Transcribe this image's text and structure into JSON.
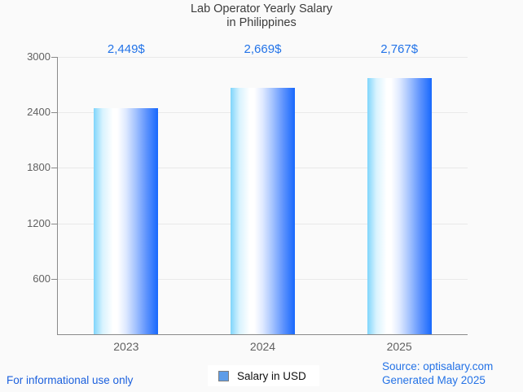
{
  "title": {
    "line1": "Lab Operator Yearly Salary",
    "line2": "in Philippines"
  },
  "chart_data": {
    "type": "bar",
    "title": "Lab Operator Yearly Salary in Philippines",
    "categories": [
      "2023",
      "2024",
      "2025"
    ],
    "values": [
      2449,
      2669,
      2767
    ],
    "value_labels": [
      "2,449$",
      "2,669$",
      "2,767$"
    ],
    "series_name": "Salary in USD",
    "xlabel": "",
    "ylabel": "",
    "ylim": [
      0,
      3000
    ],
    "yticks": [
      600,
      1200,
      1800,
      2400,
      3000
    ],
    "grid": true,
    "legend_position": "bottom-center",
    "bar_gradient": [
      "#7fd5fb",
      "#ffffff",
      "#1768fd"
    ],
    "value_label_color": "#2273e8"
  },
  "legend": {
    "label": "Salary in USD",
    "marker_color": "#5d9ce8"
  },
  "footer": {
    "left": "For informational use only",
    "source": "Source: optisalary.com",
    "generated": "Generated May 2025"
  },
  "colors": {
    "background": "#fafafa",
    "gridline": "#e9e9e9",
    "axis": "#8a8a8a",
    "axis_text": "#616161",
    "title_text": "#3c3c3c",
    "blue_text": "#2273e8",
    "footer_blue": "#1b60dd"
  }
}
